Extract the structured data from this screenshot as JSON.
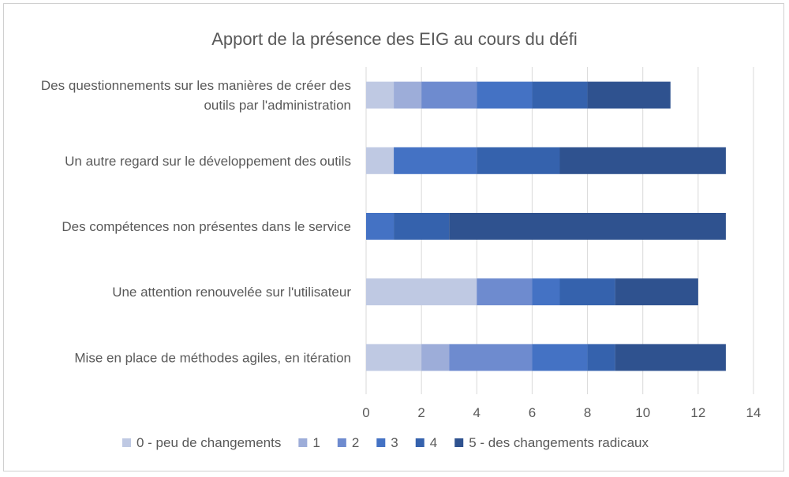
{
  "chart_data": {
    "type": "bar",
    "orientation": "horizontal",
    "stacked": true,
    "title": "Apport de la présence des EIG au cours du défi",
    "categories": [
      [
        "Des questionnements sur les manières de créer des",
        "outils par l'administration"
      ],
      [
        "Un autre regard sur le développement des outils"
      ],
      [
        "Des compétences non présentes dans le service"
      ],
      [
        "Une attention renouvelée sur l'utilisateur"
      ],
      [
        "Mise en place de méthodes agiles, en itération"
      ]
    ],
    "series": [
      {
        "name": "0 - peu de changements",
        "color": "#bfc9e3",
        "values": [
          1,
          1,
          0,
          4,
          2
        ]
      },
      {
        "name": "1",
        "color": "#9dadd9",
        "values": [
          1,
          0,
          0,
          0,
          1
        ]
      },
      {
        "name": "2",
        "color": "#6e8bcf",
        "values": [
          2,
          0,
          0,
          2,
          3
        ]
      },
      {
        "name": "3",
        "color": "#4472c4",
        "values": [
          2,
          3,
          1,
          1,
          2
        ]
      },
      {
        "name": "4",
        "color": "#3562ad",
        "values": [
          2,
          3,
          2,
          2,
          1
        ]
      },
      {
        "name": "5 - des changements radicaux",
        "color": "#2f528f",
        "values": [
          3,
          6,
          10,
          3,
          4
        ]
      }
    ],
    "xlim": [
      0,
      14
    ],
    "xticks": [
      0,
      2,
      4,
      6,
      8,
      10,
      12,
      14
    ],
    "grid": true,
    "legend_position": "bottom"
  }
}
